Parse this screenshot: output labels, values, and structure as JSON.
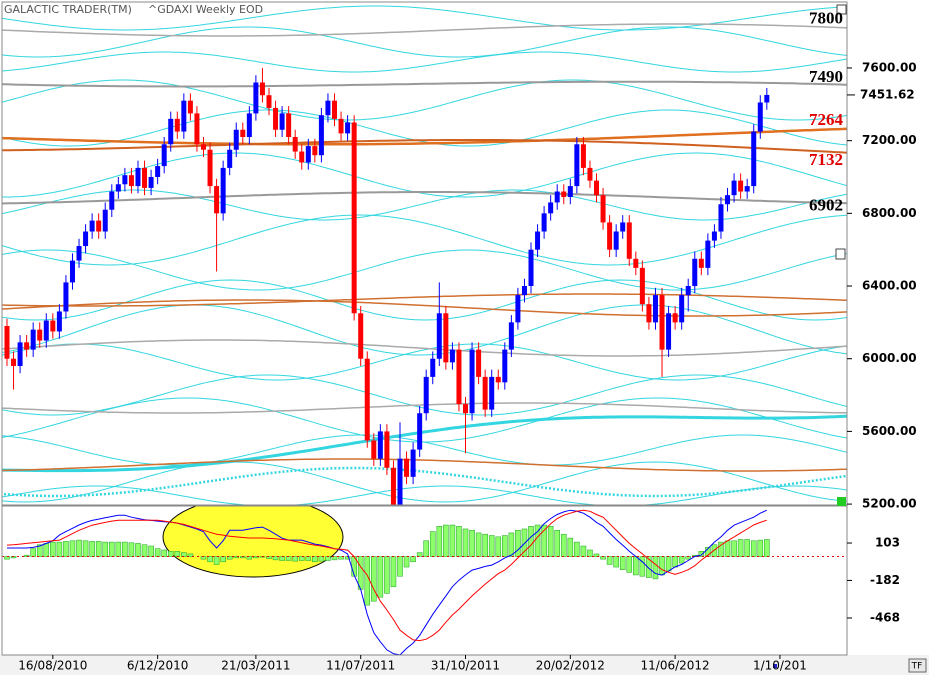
{
  "chart_data": [
    {
      "type": "candlestick",
      "title": "GALACTIC TRADER(TM)",
      "subtitle": "^GDAXI Weekly EOD",
      "open": [
        6180,
        6000,
        5960,
        6090,
        6050,
        6160,
        6100,
        6210,
        6150,
        6260,
        6420,
        6540,
        6620,
        6700,
        6760,
        6700,
        6820,
        6920,
        6960,
        7010,
        6950,
        7050,
        6940,
        7000,
        7060,
        7180,
        7320,
        7250,
        7420,
        7350,
        7180,
        7150,
        6950,
        6800,
        7050,
        7150,
        7260,
        7220,
        7350,
        7520,
        7450,
        7380,
        7260,
        7350,
        7220,
        7140,
        7080,
        7170,
        7120,
        7340,
        7420,
        7320,
        7240,
        7300,
        6250,
        6000,
        5550,
        5450,
        5600,
        5400,
        5150,
        5450,
        5350,
        5500,
        5700,
        5900,
        6000,
        6250,
        5980,
        6050,
        5750,
        5700,
        6050,
        5900,
        5720,
        5900,
        5870,
        6050,
        6200,
        6350,
        6400,
        6600,
        6700,
        6800,
        6860,
        6920,
        6890,
        6950,
        7180,
        7050,
        6980,
        6900,
        6750,
        6600,
        6700,
        6750,
        6550,
        6500,
        6300,
        6200,
        6350,
        6050,
        6250,
        6200,
        6350,
        6400,
        6550,
        6500,
        6650,
        6700,
        6850,
        6900,
        6980,
        6920,
        6950,
        7250,
        7410
      ],
      "high": [
        6220,
        6040,
        6130,
        6130,
        6200,
        6200,
        6250,
        6250,
        6300,
        6460,
        6580,
        6660,
        6740,
        6800,
        6800,
        6860,
        6960,
        7000,
        7050,
        7050,
        7090,
        7090,
        7040,
        7100,
        7220,
        7360,
        7360,
        7460,
        7460,
        7390,
        7220,
        7190,
        6990,
        7090,
        7190,
        7300,
        7300,
        7390,
        7560,
        7600,
        7490,
        7420,
        7390,
        7390,
        7260,
        7180,
        7210,
        7210,
        7380,
        7460,
        7460,
        7360,
        7340,
        7340,
        6290,
        6040,
        5590,
        5640,
        5640,
        5440,
        5650,
        5490,
        5540,
        5740,
        5940,
        6040,
        6420,
        6290,
        6090,
        6090,
        5790,
        6090,
        6090,
        5940,
        5940,
        5940,
        6090,
        6240,
        6390,
        6440,
        6640,
        6740,
        6840,
        6900,
        6960,
        6960,
        6990,
        7220,
        7220,
        7090,
        7020,
        6940,
        6790,
        6740,
        6790,
        6790,
        6590,
        6540,
        6340,
        6390,
        6390,
        6290,
        6290,
        6390,
        6440,
        6590,
        6590,
        6690,
        6740,
        6890,
        6940,
        7020,
        7020,
        6990,
        7290,
        7450,
        7490
      ],
      "low": [
        5960,
        5830,
        5920,
        6010,
        6010,
        6060,
        6060,
        6110,
        6110,
        6220,
        6380,
        6500,
        6580,
        6660,
        6660,
        6660,
        6780,
        6880,
        6920,
        6910,
        6910,
        6900,
        6900,
        6960,
        7020,
        7140,
        7210,
        7210,
        7310,
        7140,
        7110,
        6910,
        6480,
        6760,
        7010,
        7110,
        7180,
        7180,
        7310,
        7410,
        7340,
        7220,
        7220,
        7180,
        7100,
        7040,
        7040,
        7080,
        7080,
        7300,
        7280,
        7200,
        7200,
        6210,
        5960,
        5510,
        5410,
        5410,
        5360,
        5100,
        5110,
        5310,
        5310,
        5460,
        5660,
        5860,
        5960,
        5940,
        5940,
        5710,
        5480,
        5660,
        5860,
        5680,
        5680,
        5830,
        5830,
        6010,
        6160,
        6310,
        6360,
        6560,
        6660,
        6760,
        6820,
        6850,
        6850,
        6910,
        7010,
        6940,
        6860,
        6710,
        6560,
        6560,
        6660,
        6510,
        6460,
        6260,
        6160,
        6160,
        5900,
        6010,
        6160,
        6160,
        6260,
        6360,
        6460,
        6460,
        6610,
        6660,
        6810,
        6860,
        6880,
        6880,
        6910,
        7210,
        7370
      ],
      "close": [
        6000,
        5960,
        6090,
        6050,
        6160,
        6100,
        6210,
        6150,
        6260,
        6420,
        6540,
        6620,
        6700,
        6760,
        6700,
        6820,
        6920,
        6960,
        7010,
        6950,
        7050,
        6940,
        7000,
        7060,
        7180,
        7320,
        7250,
        7420,
        7350,
        7180,
        7150,
        6950,
        6800,
        7050,
        7150,
        7260,
        7220,
        7350,
        7520,
        7450,
        7380,
        7260,
        7350,
        7220,
        7140,
        7080,
        7170,
        7120,
        7340,
        7420,
        7320,
        7240,
        7300,
        6250,
        6000,
        5550,
        5450,
        5600,
        5400,
        5150,
        5450,
        5350,
        5500,
        5700,
        5900,
        6000,
        6250,
        5980,
        6050,
        5750,
        5700,
        6050,
        5900,
        5720,
        5900,
        5870,
        6050,
        6200,
        6350,
        6400,
        6600,
        6700,
        6800,
        6860,
        6920,
        6890,
        6950,
        7180,
        7050,
        6980,
        6900,
        6750,
        6600,
        6700,
        6750,
        6550,
        6500,
        6300,
        6200,
        6350,
        6050,
        6250,
        6200,
        6350,
        6400,
        6550,
        6500,
        6650,
        6700,
        6850,
        6900,
        6980,
        6920,
        6950,
        7250,
        7410,
        7451.62
      ],
      "up_color": "#0000ff",
      "down_color": "#ff0000",
      "xlim": [
        -0.76,
        128.24
      ],
      "ylim": [
        5195,
        7963
      ],
      "yticks": [
        {
          "value": 5200,
          "label": "5200.00"
        },
        {
          "value": 5600,
          "label": "5600.00"
        },
        {
          "value": 6000,
          "label": "6000.00"
        },
        {
          "value": 6400,
          "label": "6400.00"
        },
        {
          "value": 6800,
          "label": "6800.00"
        },
        {
          "value": 7200,
          "label": "7200.00"
        },
        {
          "value": 7600,
          "label": "7600.00"
        }
      ],
      "levels": [
        {
          "value": 7800,
          "color": "#000000"
        },
        {
          "value": 7490,
          "color": "#000000"
        },
        {
          "value": 7264,
          "color": "#e00000"
        },
        {
          "value": 7132,
          "color": "#e00000"
        },
        {
          "value": 6902,
          "color": "#000000"
        }
      ]
    },
    {
      "type": "macd",
      "lines": [
        {
          "color": "#0000ff",
          "values": [
            65,
            65,
            65,
            65,
            70,
            80,
            100,
            120,
            163,
            190,
            215,
            240,
            260,
            275,
            285,
            295,
            305,
            315,
            315,
            300,
            290,
            280,
            275,
            270,
            265,
            262,
            255,
            240,
            225,
            210,
            190,
            120,
            65,
            120,
            201,
            201,
            201,
            210,
            220,
            224,
            200,
            170,
            140,
            125,
            125,
            125,
            110,
            95,
            87,
            75,
            60,
            49,
            20,
            -141,
            -250,
            -440,
            -580,
            -650,
            -711,
            -740,
            -749,
            -700,
            -660,
            -600,
            -520,
            -440,
            -370,
            -300,
            -230,
            -180,
            -140,
            -103,
            -90,
            -75,
            -65,
            -40,
            -10,
            11,
            50,
            100,
            150,
            190,
            250,
            290,
            320,
            340,
            353,
            345,
            330,
            300,
            260,
            230,
            180,
            130,
            87,
            40,
            0,
            -40,
            -90,
            -130,
            -141,
            -110,
            -80,
            -60,
            -30,
            0,
            11,
            60,
            110,
            150,
            200,
            239,
            260,
            280,
            300,
            330,
            353
          ]
        },
        {
          "color": "#ff0000",
          "values": [
            87,
            90,
            95,
            100,
            105,
            110,
            115,
            120,
            125,
            150,
            175,
            200,
            220,
            239,
            250,
            260,
            270,
            277,
            277,
            277,
            277,
            277,
            277,
            277,
            270,
            262,
            255,
            245,
            230,
            215,
            200,
            185,
            170,
            163,
            155,
            150,
            145,
            141,
            141,
            141,
            138,
            135,
            130,
            125,
            115,
            105,
            95,
            87,
            80,
            70,
            60,
            55,
            49,
            0,
            -80,
            -141,
            -250,
            -340,
            -407,
            -480,
            -560,
            -600,
            -635,
            -640,
            -630,
            -600,
            -560,
            -500,
            -445,
            -400,
            -350,
            -300,
            -255,
            -210,
            -170,
            -130,
            -103,
            -60,
            -10,
            40,
            87,
            150,
            200,
            250,
            290,
            315,
            330,
            345,
            353,
            345,
            320,
            300,
            250,
            200,
            150,
            100,
            60,
            20,
            -20,
            -60,
            -100,
            -120,
            -135,
            -120,
            -100,
            -70,
            -27,
            10,
            50,
            87,
            120,
            150,
            180,
            210,
            240,
            260,
            277
          ]
        }
      ],
      "histogram": {
        "color": "#8cff6a",
        "values": [
          -20,
          -10,
          0,
          10,
          60,
          90,
          100,
          110,
          110,
          115,
          120,
          125,
          120,
          115,
          115,
          110,
          110,
          110,
          110,
          105,
          100,
          90,
          80,
          60,
          50,
          40,
          40,
          30,
          20,
          0,
          -20,
          -40,
          -60,
          -40,
          -20,
          -10,
          -10,
          -20,
          -10,
          -5,
          -15,
          -25,
          -30,
          -30,
          -35,
          -30,
          -30,
          -40,
          -35,
          -30,
          -25,
          -20,
          -20,
          -150,
          -250,
          -370,
          -340,
          -310,
          -280,
          -230,
          -150,
          -80,
          -40,
          30,
          120,
          190,
          230,
          240,
          240,
          230,
          210,
          200,
          180,
          170,
          160,
          150,
          160,
          180,
          200,
          210,
          230,
          240,
          240,
          230,
          200,
          170,
          140,
          110,
          80,
          50,
          20,
          -20,
          -60,
          -80,
          -100,
          -120,
          -140,
          -150,
          -160,
          -170,
          -140,
          -110,
          -80,
          -50,
          -20,
          10,
          40,
          70,
          90,
          110,
          120,
          120,
          130,
          130,
          120,
          125,
          130
        ]
      },
      "xlim": [
        -0.76,
        128.24
      ],
      "ylim": [
        -750,
        385
      ],
      "yticks": [
        103,
        -182,
        -468
      ],
      "xticks": [
        {
          "value": 7,
          "label": "16/08/2010"
        },
        {
          "value": 23,
          "label": "6/12/2010"
        },
        {
          "value": 38,
          "label": "21/03/2011"
        },
        {
          "value": 54,
          "label": "11/07/2011"
        },
        {
          "value": 70,
          "label": "31/10/2011"
        },
        {
          "value": 86,
          "label": "20/02/2012"
        },
        {
          "value": 102,
          "label": "11/06/2012"
        },
        {
          "value": 118,
          "label": "1/10/201"
        }
      ]
    }
  ],
  "buttons": [
    "TF"
  ]
}
